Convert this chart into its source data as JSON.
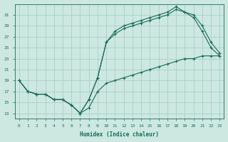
{
  "xlabel": "Humidex (Indice chaleur)",
  "bg_color": "#cce8e0",
  "grid_color": "#aacfc8",
  "line_color": "#1a6b5a",
  "xlim": [
    -0.5,
    23.5
  ],
  "ylim": [
    12,
    33
  ],
  "yticks": [
    13,
    15,
    17,
    19,
    21,
    23,
    25,
    27,
    29,
    31
  ],
  "xticks": [
    0,
    1,
    2,
    3,
    4,
    5,
    6,
    7,
    8,
    9,
    10,
    11,
    12,
    13,
    14,
    15,
    16,
    17,
    18,
    19,
    20,
    21,
    22,
    23
  ],
  "line1_x": [
    0,
    1,
    2,
    3,
    4,
    5,
    6,
    7,
    8,
    9,
    10,
    11,
    12,
    13,
    14,
    15,
    16,
    17,
    18,
    19,
    20,
    21,
    22,
    23
  ],
  "line1_y": [
    19,
    17,
    16.5,
    16.5,
    15.5,
    15.5,
    14.5,
    13,
    15.5,
    19.5,
    26,
    28,
    29,
    29.5,
    30,
    30.5,
    31,
    31.5,
    32.5,
    31.5,
    31,
    29,
    26,
    24
  ],
  "line2_x": [
    0,
    1,
    2,
    3,
    4,
    5,
    6,
    7,
    8,
    9,
    10,
    11,
    12,
    13,
    14,
    15,
    16,
    17,
    18,
    19,
    20,
    21,
    22,
    23
  ],
  "line2_y": [
    19,
    17,
    16.5,
    16.5,
    15.5,
    15.5,
    14.5,
    13,
    15.5,
    19.5,
    26,
    27.5,
    28.5,
    29,
    29.5,
    30,
    30.5,
    31,
    32,
    31.5,
    30.5,
    28,
    25,
    23.5
  ],
  "line3_x": [
    0,
    1,
    2,
    3,
    4,
    5,
    6,
    7,
    8,
    9,
    10,
    11,
    12,
    13,
    14,
    15,
    16,
    17,
    18,
    19,
    20,
    21,
    22,
    23
  ],
  "line3_y": [
    19,
    17,
    16.5,
    16.5,
    15.5,
    15.5,
    14.5,
    13,
    14,
    17,
    18.5,
    19,
    19.5,
    20,
    20.5,
    21,
    21.5,
    22,
    22.5,
    23,
    23,
    23.5,
    23.5,
    23.5
  ]
}
